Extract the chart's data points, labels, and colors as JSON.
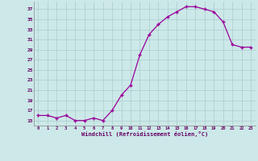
{
  "x": [
    0,
    1,
    2,
    3,
    4,
    5,
    6,
    7,
    8,
    9,
    10,
    11,
    12,
    13,
    14,
    15,
    16,
    17,
    18,
    19,
    20,
    21,
    22,
    23
  ],
  "y": [
    16,
    16,
    15.5,
    16,
    15,
    15,
    15.5,
    15,
    17,
    20,
    22,
    28,
    32,
    34,
    35.5,
    36.5,
    37.5,
    37.5,
    37,
    36.5,
    34.5,
    30,
    29.5,
    29.5
  ],
  "line_color": "#990099",
  "marker_color": "#990099",
  "bg_color": "#cce8e8",
  "grid_color": "#aacccc",
  "xlabel": "Windchill (Refroidissement éolien,°C)",
  "yticks": [
    15,
    17,
    19,
    21,
    23,
    25,
    27,
    29,
    31,
    33,
    35,
    37
  ],
  "xticks": [
    0,
    1,
    2,
    3,
    4,
    5,
    6,
    7,
    8,
    9,
    10,
    11,
    12,
    13,
    14,
    15,
    16,
    17,
    18,
    19,
    20,
    21,
    22,
    23
  ],
  "ylim": [
    14.0,
    38.5
  ],
  "xlim": [
    -0.5,
    23.5
  ]
}
